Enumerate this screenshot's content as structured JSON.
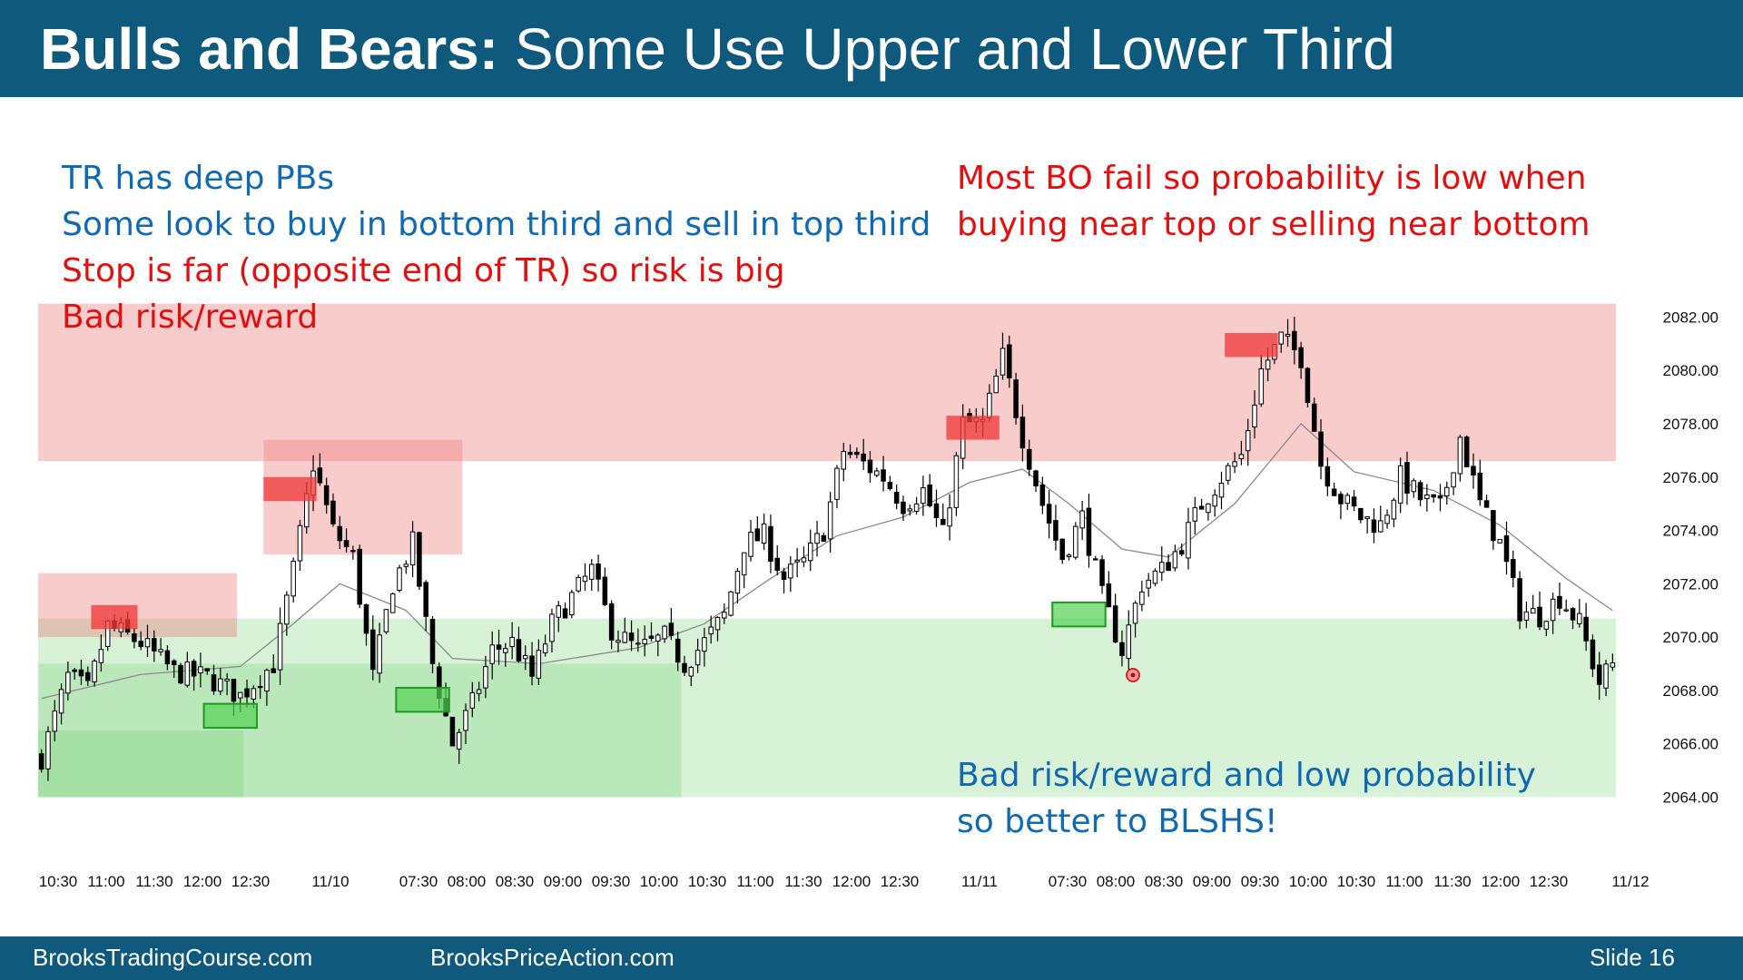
{
  "slide": {
    "title_bold": "Bulls and Bears:",
    "title_rest": " Some Use Upper and Lower Third",
    "footer_left": "BrooksTradingCourse.com",
    "footer_mid": "BrooksPriceAction.com",
    "footer_right": "Slide  16"
  },
  "notes": {
    "left_blue_1": "TR has deep PBs",
    "left_blue_2": "Some look to buy in bottom third and sell in top third",
    "left_red_1": "Stop is far (opposite end of TR) so risk is big",
    "left_red_2": "Bad risk/reward",
    "right_red_1": "Most BO fail so probability is low when",
    "right_red_2": "buying near top or selling near bottom",
    "bottom_blue_1": "Bad risk/reward and low probability",
    "bottom_blue_2": "so better to BLSHS!"
  },
  "colors": {
    "header": "#0f5a7c",
    "bull_zone": "#d6f2d6",
    "bear_zone": "#f9caca",
    "blue_text": "#1169b0",
    "red_text": "#e01010"
  },
  "chart_data": {
    "type": "candlestick",
    "title": "",
    "xlabel": "",
    "ylabel": "",
    "ylim": [
      2063.2,
      2083.0
    ],
    "y_ticks": [
      "2082.00",
      "2080.00",
      "2078.00",
      "2076.00",
      "2074.00",
      "2072.00",
      "2070.00",
      "2068.00",
      "2066.00",
      "2064.00"
    ],
    "x_ticks": [
      "10:30",
      "11:00",
      "11:30",
      "12:00",
      "12:30",
      "11/10",
      "07:30",
      "08:00",
      "08:30",
      "09:00",
      "09:30",
      "10:00",
      "10:30",
      "11:00",
      "11:30",
      "12:00",
      "12:30",
      "11/11",
      "07:30",
      "08:00",
      "08:30",
      "09:00",
      "09:30",
      "10:00",
      "10:30",
      "11:00",
      "11:30",
      "12:00",
      "12:30",
      "11/12"
    ],
    "close_path": [
      [
        0,
        2065.5
      ],
      [
        4,
        2068.5
      ],
      [
        7,
        2068.0
      ],
      [
        10,
        2070.4
      ],
      [
        15,
        2069.8
      ],
      [
        20,
        2068.7
      ],
      [
        25,
        2068.5
      ],
      [
        30,
        2067.8
      ],
      [
        35,
        2069.0
      ],
      [
        38,
        2072.5
      ],
      [
        41,
        2076.5
      ],
      [
        44,
        2074.0
      ],
      [
        47,
        2073.0
      ],
      [
        50,
        2068.5
      ],
      [
        53,
        2072.0
      ],
      [
        56,
        2073.5
      ],
      [
        59,
        2069.0
      ],
      [
        62,
        2066.0
      ],
      [
        65,
        2067.5
      ],
      [
        68,
        2069.5
      ],
      [
        71,
        2069.8
      ],
      [
        74,
        2068.5
      ],
      [
        77,
        2070.5
      ],
      [
        80,
        2071.5
      ],
      [
        83,
        2072.5
      ],
      [
        86,
        2070.3
      ],
      [
        90,
        2069.5
      ],
      [
        94,
        2070.0
      ],
      [
        97,
        2069.0
      ],
      [
        100,
        2069.8
      ],
      [
        103,
        2070.8
      ],
      [
        106,
        2073.5
      ],
      [
        109,
        2073.8
      ],
      [
        112,
        2072.2
      ],
      [
        115,
        2072.8
      ],
      [
        118,
        2074.0
      ],
      [
        121,
        2077.0
      ],
      [
        124,
        2076.5
      ],
      [
        127,
        2076.0
      ],
      [
        130,
        2075.0
      ],
      [
        133,
        2075.5
      ],
      [
        136,
        2073.8
      ],
      [
        139,
        2078.0
      ],
      [
        142,
        2078.0
      ],
      [
        145,
        2080.5
      ],
      [
        148,
        2077.5
      ],
      [
        151,
        2075.0
      ],
      [
        154,
        2073.0
      ],
      [
        157,
        2074.5
      ],
      [
        160,
        2071.5
      ],
      [
        163,
        2069.5
      ],
      [
        166,
        2072.0
      ],
      [
        169,
        2072.5
      ],
      [
        172,
        2073.5
      ],
      [
        175,
        2075.0
      ],
      [
        178,
        2076.0
      ],
      [
        181,
        2076.8
      ],
      [
        184,
        2080.0
      ],
      [
        187,
        2081.2
      ],
      [
        190,
        2080.5
      ],
      [
        193,
        2076.5
      ],
      [
        196,
        2075.2
      ],
      [
        199,
        2074.5
      ],
      [
        202,
        2074.2
      ],
      [
        205,
        2076.0
      ],
      [
        208,
        2075.2
      ],
      [
        211,
        2074.8
      ],
      [
        214,
        2077.5
      ],
      [
        217,
        2075.0
      ],
      [
        220,
        2073.5
      ],
      [
        223,
        2071.0
      ],
      [
        226,
        2070.8
      ],
      [
        229,
        2071.5
      ],
      [
        232,
        2070.5
      ],
      [
        235,
        2068.3
      ],
      [
        237,
        2069.0
      ]
    ],
    "moving_average": [
      [
        0,
        2067.7
      ],
      [
        15,
        2068.6
      ],
      [
        30,
        2068.9
      ],
      [
        38,
        2070.5
      ],
      [
        45,
        2072.0
      ],
      [
        55,
        2071.0
      ],
      [
        62,
        2069.2
      ],
      [
        75,
        2069.0
      ],
      [
        90,
        2069.6
      ],
      [
        100,
        2070.5
      ],
      [
        110,
        2072.2
      ],
      [
        120,
        2073.8
      ],
      [
        130,
        2074.5
      ],
      [
        140,
        2075.8
      ],
      [
        148,
        2076.3
      ],
      [
        155,
        2075.0
      ],
      [
        163,
        2073.3
      ],
      [
        170,
        2073.0
      ],
      [
        180,
        2075.0
      ],
      [
        190,
        2078.0
      ],
      [
        198,
        2076.2
      ],
      [
        210,
        2075.5
      ],
      [
        220,
        2074.2
      ],
      [
        230,
        2072.2
      ],
      [
        237,
        2071.0
      ]
    ],
    "n_bars": 238,
    "zones": [
      {
        "kind": "bear",
        "x0": 0,
        "x1": 238,
        "y0": 2076.6,
        "y1": 2082.5
      },
      {
        "kind": "bull",
        "x0": 0,
        "x1": 238,
        "y0": 2064.0,
        "y1": 2070.7
      },
      {
        "kind": "bull",
        "x0": 0,
        "x1": 97,
        "y0": 2064.0,
        "y1": 2069.0
      },
      {
        "kind": "bull",
        "x0": 0,
        "x1": 31,
        "y0": 2064.0,
        "y1": 2066.5
      },
      {
        "kind": "bear",
        "x0": 34,
        "x1": 64,
        "y0": 2073.1,
        "y1": 2077.4
      },
      {
        "kind": "bear",
        "x0": 0,
        "x1": 30,
        "y0": 2070.0,
        "y1": 2072.4
      }
    ],
    "markers": [
      {
        "color": "red",
        "x0": 8,
        "x1": 15,
        "y0": 2070.3,
        "y1": 2071.2
      },
      {
        "color": "red",
        "x0": 34,
        "x1": 42,
        "y0": 2075.1,
        "y1": 2076.0
      },
      {
        "color": "red",
        "x0": 137,
        "x1": 145,
        "y0": 2077.4,
        "y1": 2078.3
      },
      {
        "color": "red",
        "x0": 179,
        "x1": 187,
        "y0": 2080.5,
        "y1": 2081.4
      },
      {
        "color": "green",
        "x0": 25,
        "x1": 33,
        "y0": 2066.6,
        "y1": 2067.5
      },
      {
        "color": "green",
        "x0": 54,
        "x1": 62,
        "y0": 2067.2,
        "y1": 2068.1
      },
      {
        "color": "green",
        "x0": 153,
        "x1": 161,
        "y0": 2070.4,
        "y1": 2071.3
      }
    ]
  }
}
